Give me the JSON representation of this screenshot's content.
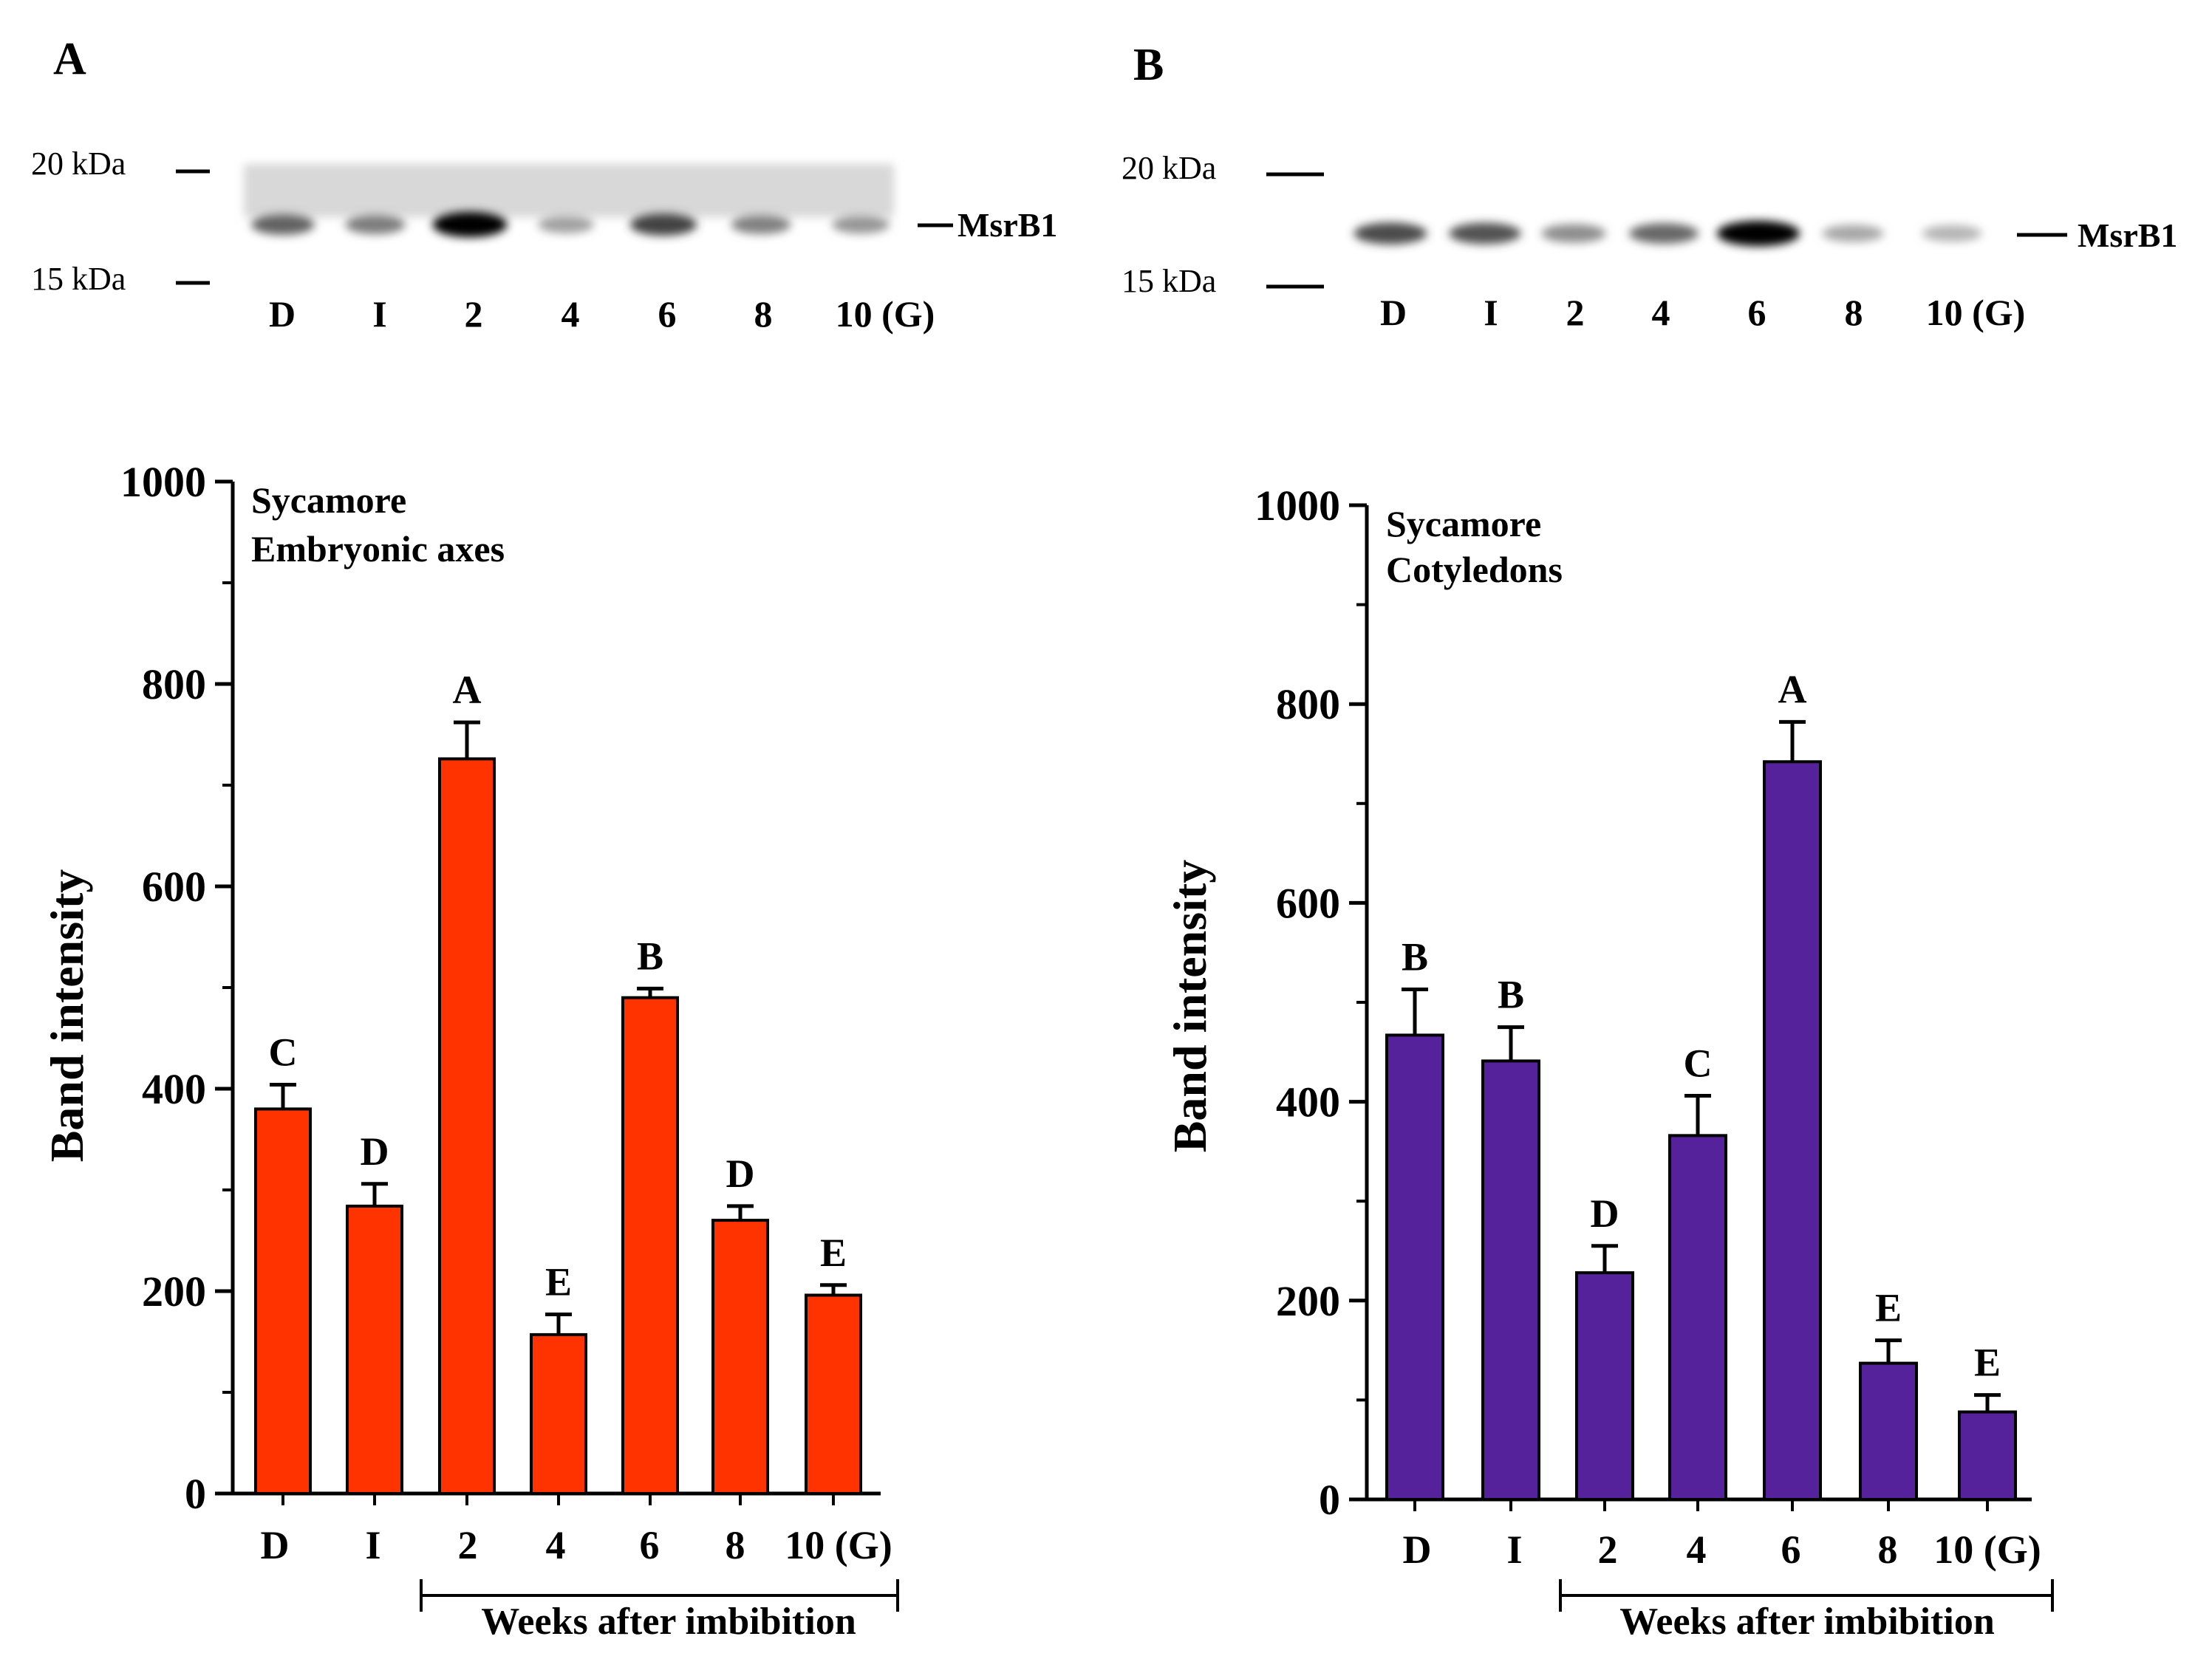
{
  "chart_data": [
    {
      "panel": "A",
      "type": "bar",
      "title": "Sycamore",
      "subtitle": "Embryonic axes",
      "ylabel": "Band intensity",
      "xlabel": "Weeks after imbibition",
      "ylim": [
        0,
        1000
      ],
      "yticks": [
        0,
        200,
        400,
        600,
        800,
        1000
      ],
      "categories": [
        "D",
        "I",
        "2",
        "4",
        "6",
        "8",
        "10 (G)"
      ],
      "values": [
        380,
        284,
        726,
        157,
        490,
        270,
        196
      ],
      "errors": [
        24,
        22,
        36,
        20,
        9,
        14,
        10
      ],
      "significance": [
        "C",
        "D",
        "A",
        "E",
        "B",
        "D",
        "E"
      ],
      "bar_color": "#ff3300",
      "blot": {
        "markers": [
          "20 kDa",
          "15 kDa"
        ],
        "protein": "MsrB1",
        "lanes": [
          "D",
          "I",
          "2",
          "4",
          "6",
          "8",
          "10 (G)"
        ]
      }
    },
    {
      "panel": "B",
      "type": "bar",
      "title": "Sycamore",
      "subtitle": "Cotyledons",
      "ylabel": "Band intensity",
      "xlabel": "Weeks after imbibition",
      "ylim": [
        0,
        1000
      ],
      "yticks": [
        0,
        200,
        400,
        600,
        800,
        1000
      ],
      "categories": [
        "D",
        "I",
        "2",
        "4",
        "6",
        "8",
        "10 (G)"
      ],
      "values": [
        467,
        441,
        228,
        366,
        742,
        137,
        88
      ],
      "errors": [
        46,
        34,
        27,
        40,
        40,
        23,
        17
      ],
      "significance": [
        "B",
        "B",
        "D",
        "C",
        "A",
        "E",
        "E"
      ],
      "bar_color": "#55229c",
      "blot": {
        "markers": [
          "20 kDa",
          "15 kDa"
        ],
        "protein": "MsrB1",
        "lanes": [
          "D",
          "I",
          "2",
          "4",
          "6",
          "8",
          "10 (G)"
        ]
      }
    }
  ]
}
